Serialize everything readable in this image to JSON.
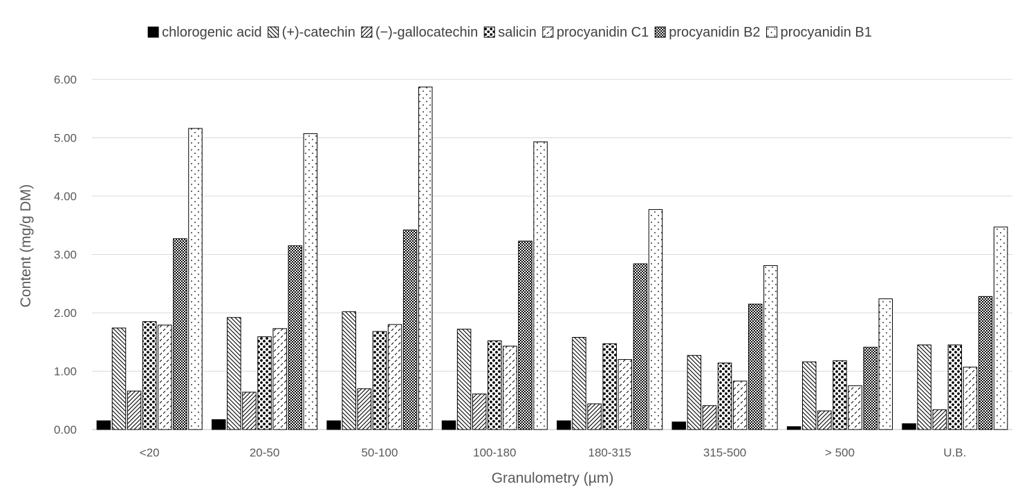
{
  "chart_data": {
    "type": "bar",
    "title": "",
    "xlabel": "Granulometry (µm)",
    "ylabel": "Content (mg/g DM)",
    "ylim": [
      0,
      6
    ],
    "yticks": [
      "0.00",
      "1.00",
      "2.00",
      "3.00",
      "4.00",
      "5.00",
      "6.00"
    ],
    "grid": true,
    "legend_position": "top",
    "categories": [
      "<20",
      "20-50",
      "50-100",
      "100-180",
      "180-315",
      "315-500",
      "> 500",
      "U.B."
    ],
    "series": [
      {
        "name": "chlorogenic acid",
        "pattern": "solid",
        "values": [
          0.15,
          0.17,
          0.15,
          0.15,
          0.15,
          0.13,
          0.05,
          0.1
        ]
      },
      {
        "name": "(+)-catechin",
        "pattern": "diag-back",
        "values": [
          1.74,
          1.92,
          2.02,
          1.72,
          1.58,
          1.27,
          1.16,
          1.45
        ]
      },
      {
        "name": "(−)-gallocatechin",
        "pattern": "diag-fwd",
        "values": [
          0.66,
          0.64,
          0.7,
          0.61,
          0.44,
          0.41,
          0.32,
          0.34
        ]
      },
      {
        "name": "salicin",
        "pattern": "large-dots",
        "values": [
          1.85,
          1.59,
          1.68,
          1.52,
          1.47,
          1.14,
          1.18,
          1.45
        ]
      },
      {
        "name": "procyanidin C1",
        "pattern": "dashes",
        "values": [
          1.79,
          1.73,
          1.8,
          1.43,
          1.2,
          0.83,
          0.75,
          1.07
        ]
      },
      {
        "name": "procyanidin B2",
        "pattern": "dense-dots",
        "values": [
          3.27,
          3.15,
          3.42,
          3.23,
          2.84,
          2.15,
          1.41,
          2.28
        ]
      },
      {
        "name": "procyanidin B1",
        "pattern": "sparse-dots",
        "values": [
          5.16,
          5.07,
          5.87,
          4.93,
          3.77,
          2.81,
          2.24,
          3.47
        ]
      }
    ]
  }
}
